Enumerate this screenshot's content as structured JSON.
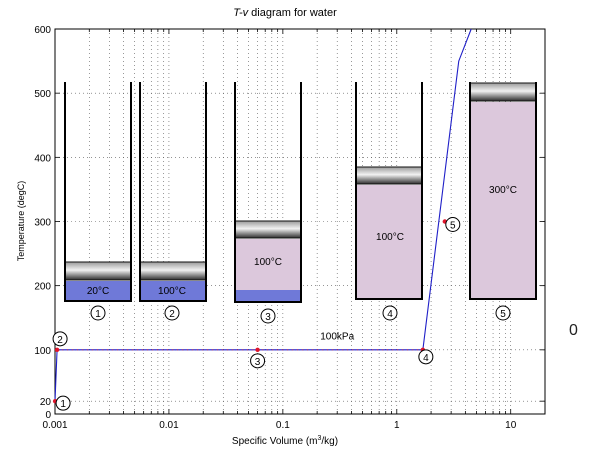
{
  "chart_data": {
    "type": "line",
    "title_italic": "T-v",
    "title_rest": " diagram for water",
    "xlabel_pre": "Specific Volume (m",
    "xlabel_sup": "3",
    "xlabel_post": "/kg)",
    "ylabel": "Temperature (degC)",
    "x_scale": "log",
    "xlim": [
      0.001,
      20
    ],
    "ylim": [
      0,
      600
    ],
    "grid": true,
    "x_ticks": [
      {
        "value": 0.001,
        "label": "0.001"
      },
      {
        "value": 0.01,
        "label": "0.01"
      },
      {
        "value": 0.1,
        "label": "0.1"
      },
      {
        "value": 1,
        "label": "1"
      },
      {
        "value": 10,
        "label": "10"
      }
    ],
    "y_ticks": [
      {
        "value": 0,
        "label": "0"
      },
      {
        "value": 20,
        "label": "20"
      },
      {
        "value": 100,
        "label": "100"
      },
      {
        "value": 200,
        "label": "200"
      },
      {
        "value": 300,
        "label": "300"
      },
      {
        "value": 400,
        "label": "400"
      },
      {
        "value": 500,
        "label": "500"
      },
      {
        "value": 600,
        "label": "600"
      }
    ],
    "process_line": {
      "color": "#1f1fc8",
      "points": [
        [
          0.001,
          20
        ],
        [
          0.001043,
          100
        ],
        [
          1.694,
          100
        ],
        [
          3.5,
          550
        ],
        [
          4.5,
          600
        ]
      ]
    },
    "state_points": [
      {
        "label": "1",
        "x": 0.001002,
        "y": 20
      },
      {
        "label": "2",
        "x": 0.001043,
        "y": 100
      },
      {
        "label": "3",
        "x": 0.06,
        "y": 100
      },
      {
        "label": "4",
        "x": 1.694,
        "y": 100
      },
      {
        "label": "5",
        "x": 2.639,
        "y": 300
      }
    ],
    "annotations": [
      {
        "text": "100kPa",
        "x": 0.3,
        "y": 110
      }
    ],
    "cylinders": [
      {
        "number": "1",
        "temp_label": "20°C",
        "fill": "liquid"
      },
      {
        "number": "2",
        "temp_label": "100°C",
        "fill": "liquid"
      },
      {
        "number": "3",
        "temp_label": "100°C",
        "fill": "mixture"
      },
      {
        "number": "4",
        "temp_label": "100°C",
        "fill": "vapor"
      },
      {
        "number": "5",
        "temp_label": "300°C",
        "fill": "vapor"
      }
    ],
    "colors": {
      "liquid": "#6f79d8",
      "vapor": "#dcc8dc",
      "piston": "#444444",
      "point": "#e0142a",
      "line": "#1f1fc8"
    }
  },
  "stray_text": "0"
}
